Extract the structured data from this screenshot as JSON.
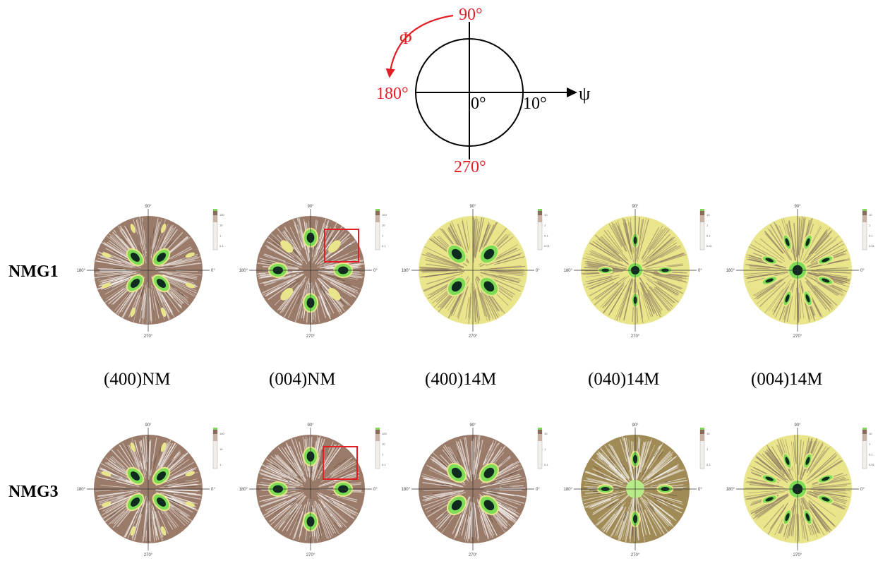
{
  "schematic": {
    "phi_symbol": "Φ",
    "psi_symbol": "ψ",
    "angle_90": "90°",
    "angle_180": "180°",
    "angle_270": "270°",
    "center": "0°",
    "edge": "10°",
    "colors": {
      "angle": "#e31e24",
      "axes": "#000000"
    }
  },
  "rows": [
    {
      "label": "NMG1"
    },
    {
      "label": "NMG3"
    }
  ],
  "columns": [
    {
      "label": "(400)NM"
    },
    {
      "label": "(004)NM"
    },
    {
      "label": "(400)14M"
    },
    {
      "label": "(040)14M"
    },
    {
      "label": "(004)14M"
    }
  ],
  "pole_figure_axis_labels": {
    "top": "90°",
    "left": "180°",
    "right": "0°",
    "bottom": "270°"
  },
  "colorbar_ticks": {
    "NMG1": [
      [
        "100",
        "10",
        "1",
        "0.1"
      ],
      [
        "100",
        "10",
        "1",
        "0.1"
      ],
      [
        "10",
        "1",
        "0.1",
        "0.01"
      ],
      [
        "10",
        "1",
        "0.1",
        "0.01"
      ],
      [
        "10",
        "1",
        "0.1",
        "0.01"
      ]
    ],
    "NMG3": [
      [
        "100",
        "10",
        "1"
      ],
      [
        "100",
        "10",
        "1",
        "0.1"
      ],
      [
        "10",
        "1",
        "0.1"
      ],
      [
        "10",
        "1",
        "0.1"
      ],
      [
        "10",
        "1",
        "0.1",
        "0.01"
      ]
    ]
  },
  "colors": {
    "brown": "#9a7a68",
    "yellow": "#e9e58a",
    "green": "#7ddc55",
    "dark": "#0f2a1e",
    "highlight_box": "#e31e24"
  },
  "highlight_boxes": [
    "NMG1 (004)NM",
    "NMG3 (004)NM"
  ]
}
